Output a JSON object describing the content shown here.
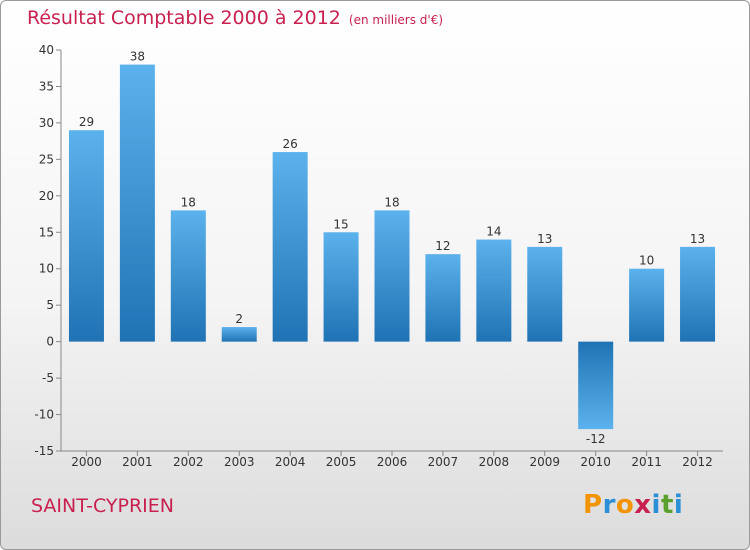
{
  "title": {
    "main": "Résultat Comptable 2000 à 2012",
    "unit": "(en milliers d'€)"
  },
  "commune": "SAINT-CYPRIEN",
  "brand": {
    "letters": [
      "P",
      "r",
      "o",
      "x",
      "i",
      "t",
      "i"
    ],
    "colors": [
      "#f29400",
      "#2a8fd6",
      "#f29400",
      "#c8214f",
      "#2a8fd6",
      "#5aa02c",
      "#2a8fd6"
    ]
  },
  "colors": {
    "bar_light": "#5cb2ec",
    "bar_dark": "#1f73b4",
    "grid": "#cfcfcf",
    "title": "#c8214f"
  },
  "chart_data": {
    "type": "bar",
    "title": "Résultat Comptable 2000 à 2012",
    "ylabel": "en milliers d'€",
    "xlabel": "",
    "ylim": [
      -15,
      40
    ],
    "ytick_step": 5,
    "yticks": [
      "-15",
      "-10",
      "-5",
      "0",
      "5",
      "10",
      "15",
      "20",
      "25",
      "30",
      "35",
      "40"
    ],
    "categories": [
      "2000",
      "2001",
      "2002",
      "2003",
      "2004",
      "2005",
      "2006",
      "2007",
      "2008",
      "2009",
      "2010",
      "2011",
      "2012"
    ],
    "values": [
      29,
      38,
      18,
      2,
      26,
      15,
      18,
      12,
      14,
      13,
      -12,
      10,
      13
    ],
    "data_labels": [
      "29",
      "38",
      "18",
      "2",
      "26",
      "15",
      "18",
      "12",
      "14",
      "13",
      "-12",
      "10",
      "13"
    ],
    "grid": false,
    "legend": "none"
  }
}
